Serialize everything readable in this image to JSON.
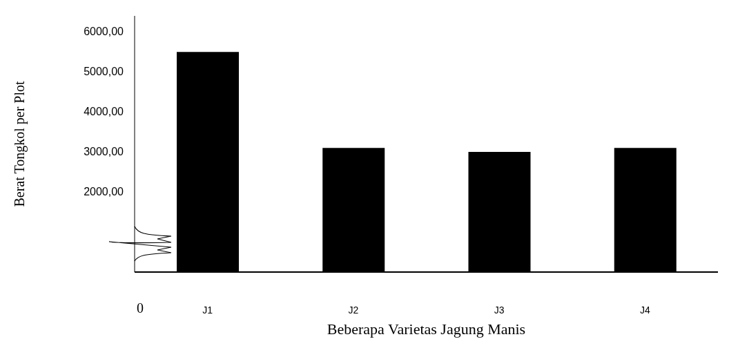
{
  "chart_data": {
    "type": "bar",
    "xlabel": "Beberapa Varietas Jagung Manis",
    "ylabel": "Berat Tongkol per Plot",
    "categories": [
      "J1",
      "J2",
      "J3",
      "J4"
    ],
    "values": [
      5500,
      3100,
      3000,
      3100
    ],
    "color": "#000000",
    "ylim": [
      0,
      6400
    ],
    "annotations": [
      "0"
    ],
    "yticks": [
      {
        "value": 2000,
        "label": "2000,00"
      },
      {
        "value": 3000,
        "label": "3000,00"
      },
      {
        "value": 4000,
        "label": "4000,00"
      },
      {
        "value": 5000,
        "label": "5000,00"
      },
      {
        "value": 6000,
        "label": "6000,00"
      }
    ],
    "grid": false
  }
}
